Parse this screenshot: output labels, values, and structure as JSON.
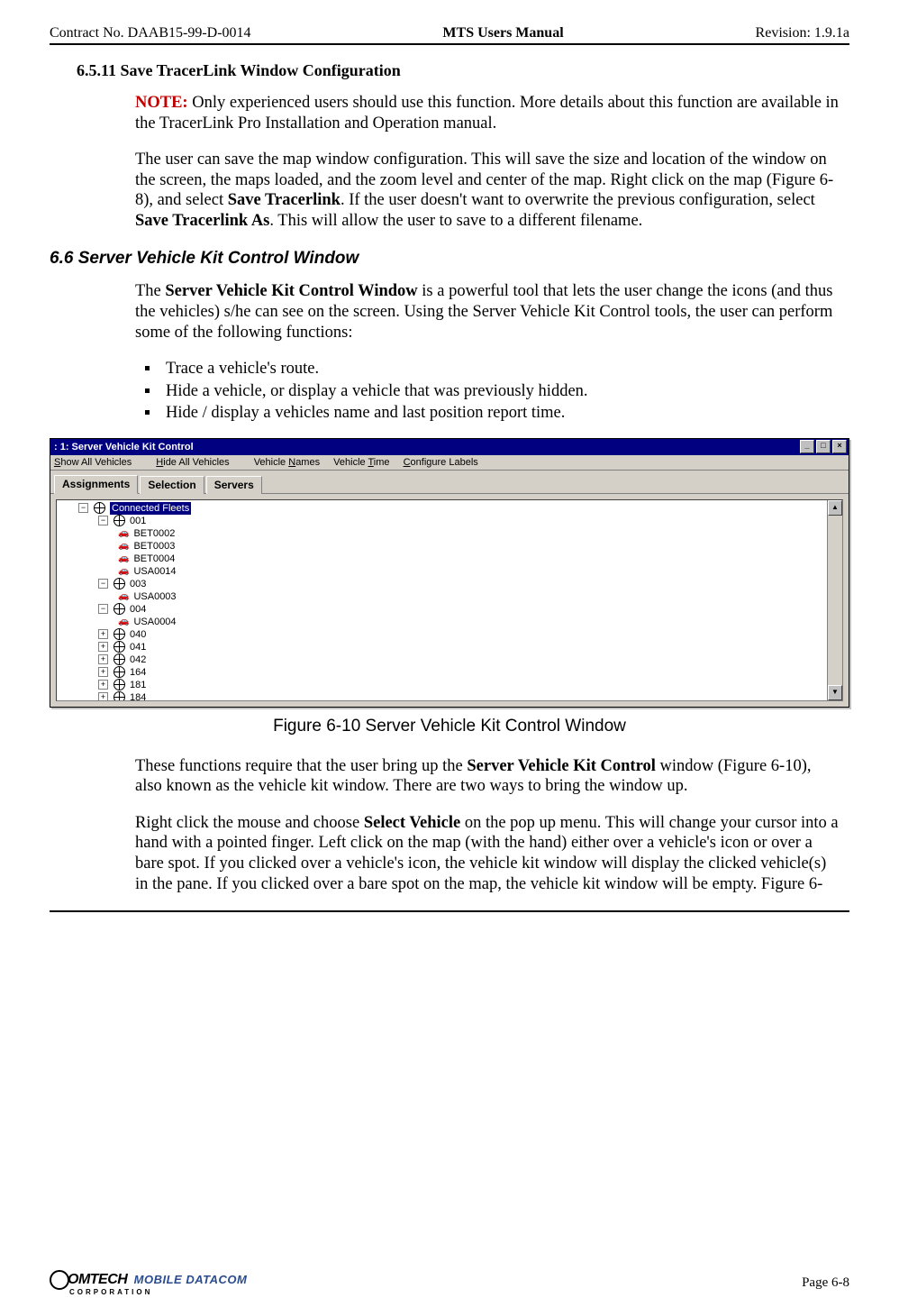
{
  "header": {
    "left": "Contract No. DAAB15-99-D-0014",
    "center": "MTS Users Manual",
    "right": "Revision:  1.9.1a"
  },
  "section_6_5_11": {
    "heading": "6.5.11  Save TracerLink Window Configuration",
    "note_lead": "NOTE:",
    "note_body": " Only experienced users should use this function. More details about this function are available in the TracerLink Pro Installation and Operation manual.",
    "para1_a": "The user can save the map window configuration. This will save the size and location of the window on the screen, the maps loaded, and the zoom level and center of the map. Right click on the map (Figure 6-8), and select ",
    "para1_b": "Save Tracerlink",
    "para1_c": ". If the user doesn't want to overwrite the previous configuration, select ",
    "para1_d": "Save Tracerlink As",
    "para1_e": ". This will allow the user to save to a different filename."
  },
  "section_6_6": {
    "heading": "6.6  Server Vehicle Kit Control Window",
    "para1_a": "The ",
    "para1_b": "Server Vehicle Kit Control Window",
    "para1_c": " is a powerful tool that lets the user change the icons (and thus the vehicles) s/he can see on the screen.  Using the Server Vehicle Kit Control tools, the user can perform some of the following functions:",
    "bullets": [
      "Trace a vehicle's route.",
      "Hide a vehicle, or display a vehicle that was previously hidden.",
      "Hide / display a vehicles name and last position report time."
    ],
    "para2_a": "These functions require that the user bring up the ",
    "para2_b": "Server Vehicle Kit Control",
    "para2_c": " window (Figure 6-10), also known as the vehicle kit window.  There are two ways to bring the window up.",
    "para3_a": "Right click the mouse and choose ",
    "para3_b": "Select Vehicle",
    "para3_c": " on the pop up menu.  This will change your cursor into a hand with a pointed finger.  Left click on the map (with the hand) either over a vehicle's icon or over a bare spot. If you clicked over a vehicle's icon, the vehicle kit window will display the clicked vehicle(s) in the pane.  If you clicked over a bare spot on the map, the vehicle kit window will be empty.  Figure 6-"
  },
  "figure": {
    "caption": "Figure 6-10   Server Vehicle Kit Control Window"
  },
  "window": {
    "title": ": 1: Server Vehicle Kit Control",
    "menus": {
      "show_all": "Show All Vehicles",
      "hide_all": "Hide All Vehicles",
      "names": "Vehicle Names",
      "time": "Vehicle Time",
      "labels": "Configure Labels"
    },
    "tabs": {
      "assignments": "Assignments",
      "selection": "Selection",
      "servers": "Servers"
    },
    "tree": {
      "root": "Connected Fleets",
      "n001": "001",
      "bet2": "BET0002",
      "bet3": "BET0003",
      "bet4": "BET0004",
      "usa14": "USA0014",
      "n003": "003",
      "usa3": "USA0003",
      "n004": "004",
      "usa4": "USA0004",
      "n040": "040",
      "n041": "041",
      "n042": "042",
      "n164": "164",
      "n181": "181",
      "n184": "184"
    },
    "buttons": {
      "min": "_",
      "max": "□",
      "close": "×",
      "up": "▲",
      "down": "▼"
    }
  },
  "footer": {
    "logo_main": "OMTECH",
    "logo_sub": "MOBILE DATACOM",
    "logo_corp": "CORPORATION",
    "page": "Page 6-8"
  }
}
